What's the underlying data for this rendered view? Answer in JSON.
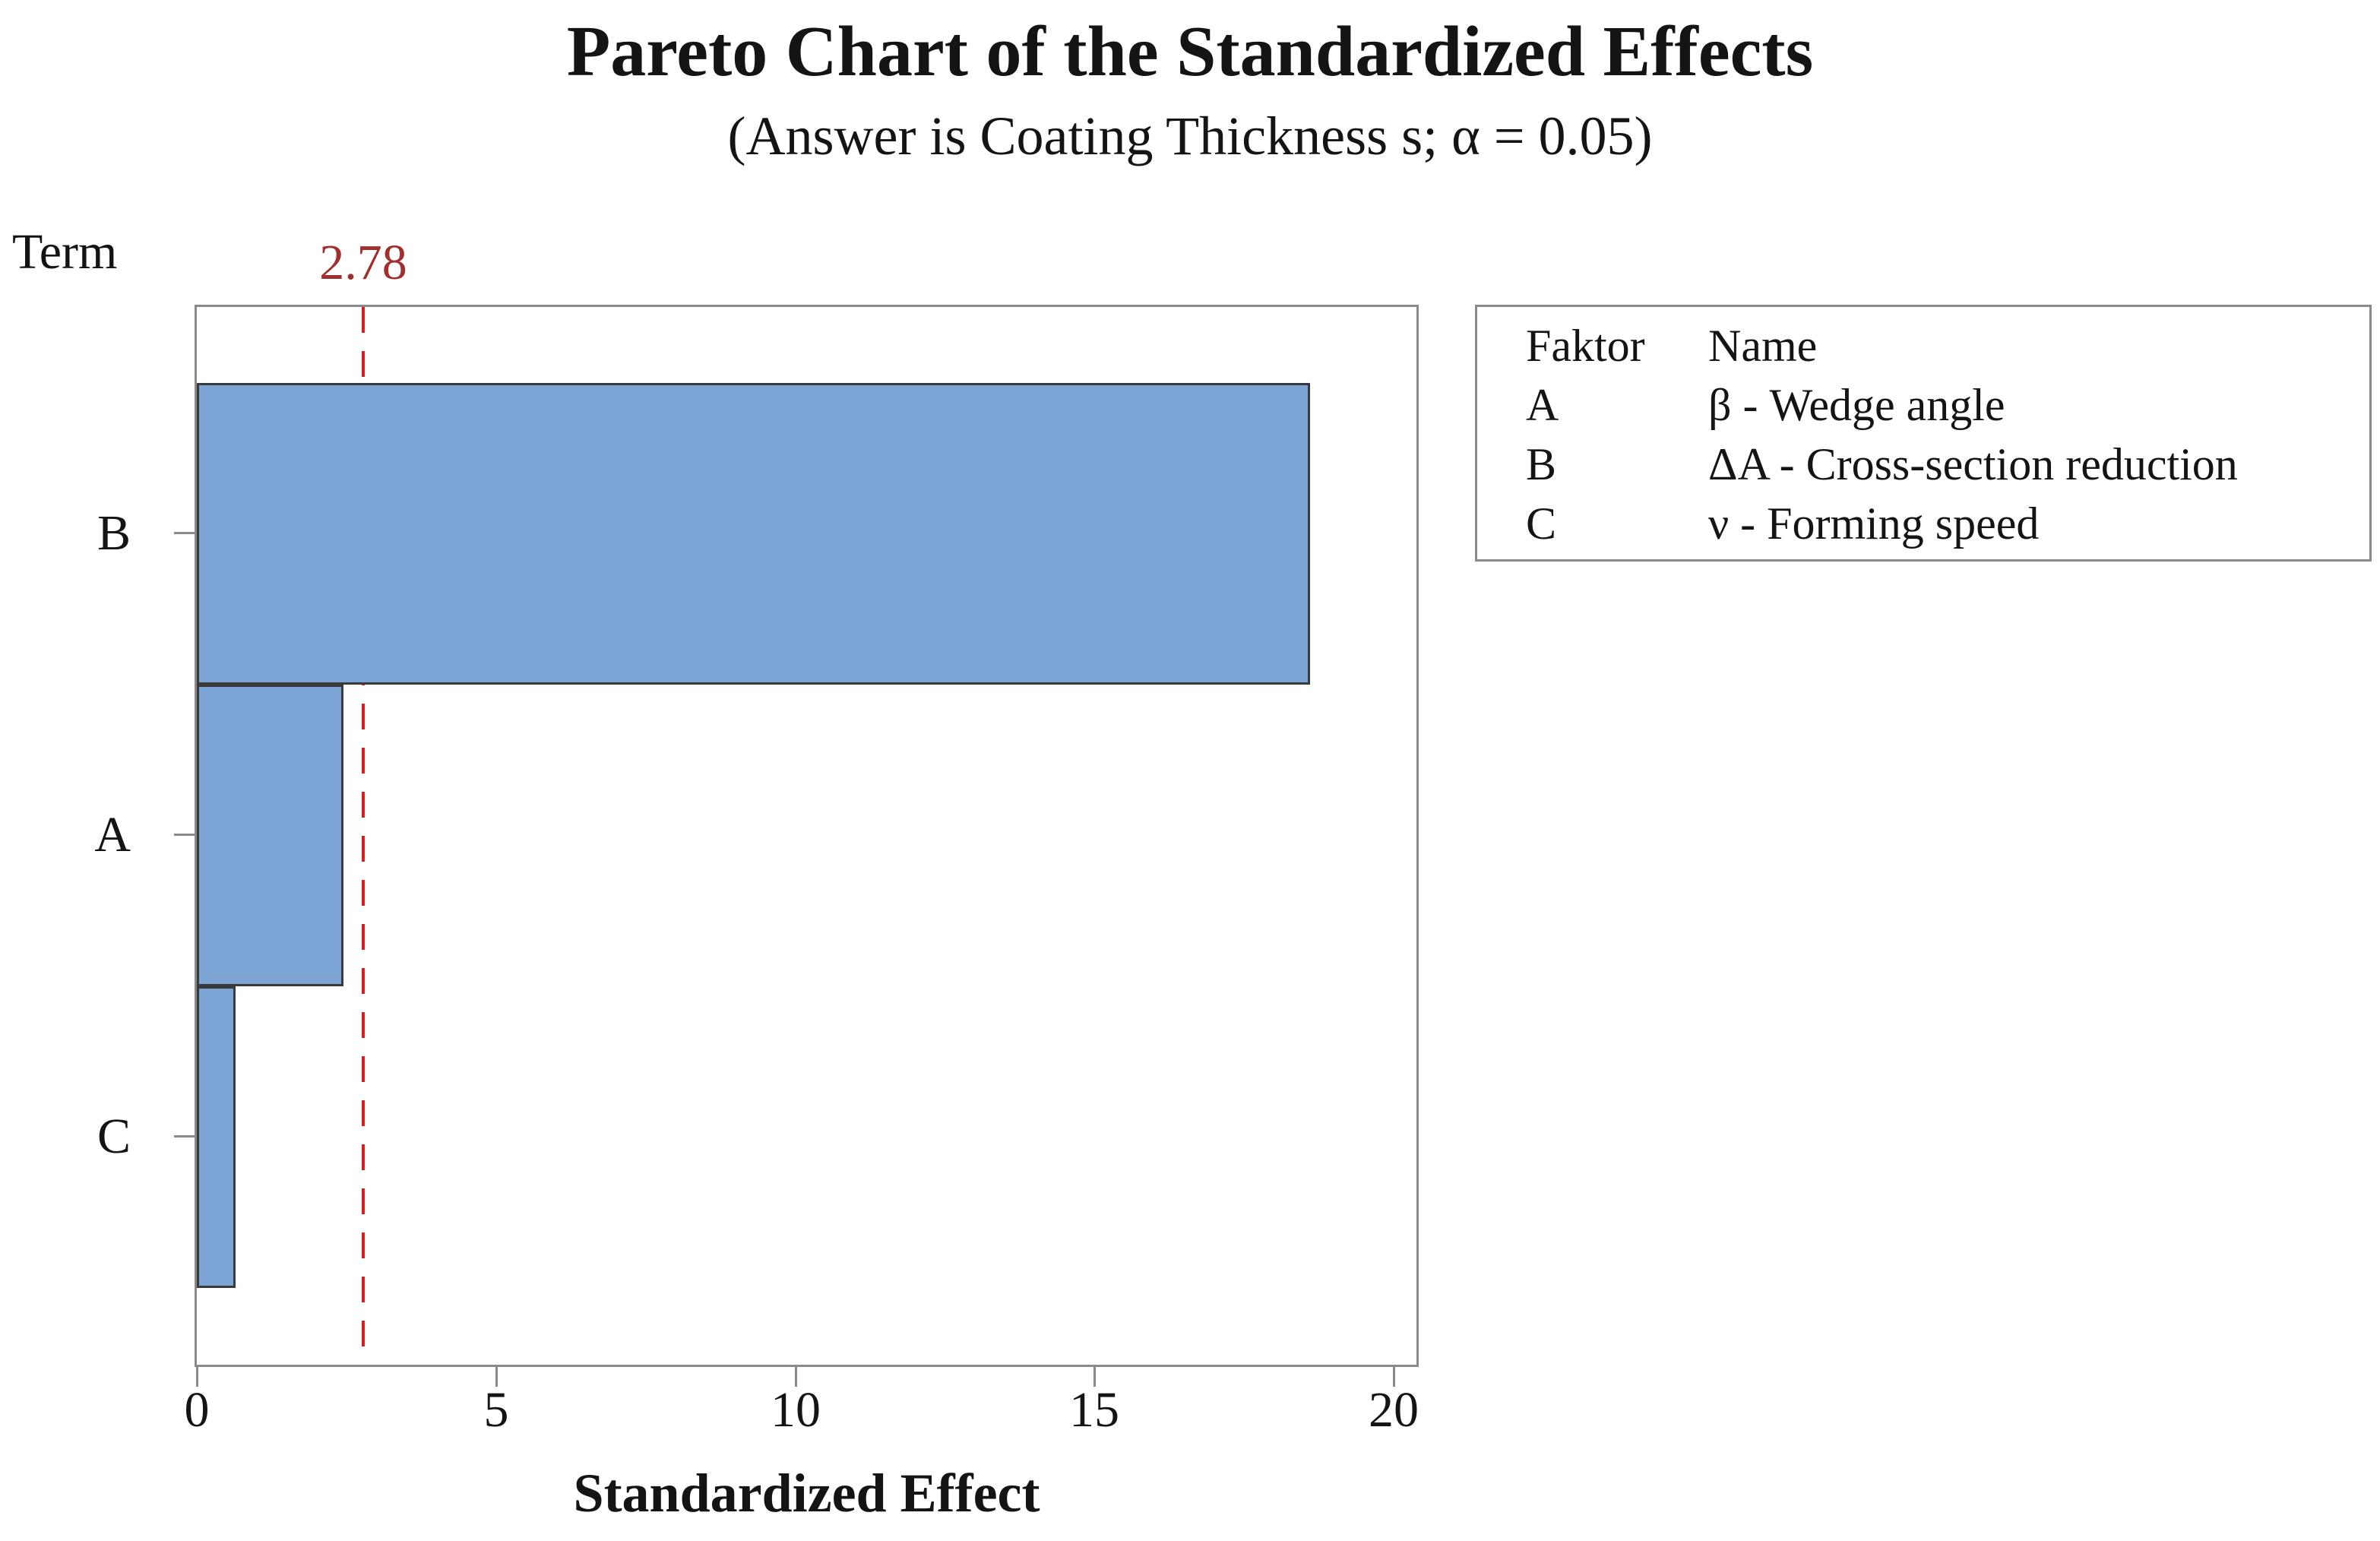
{
  "chart_data": {
    "type": "bar",
    "orientation": "horizontal",
    "title": "Pareto Chart of the Standardized Effects",
    "subtitle": "(Answer is Coating Thickness s; α = 0.05)",
    "ylabel": "Term",
    "xlabel": "Standardized Effect",
    "categories": [
      "B",
      "A",
      "C"
    ],
    "values": [
      18.6,
      2.45,
      0.65
    ],
    "xlim": [
      0,
      20.4
    ],
    "x_ticks": [
      "0",
      "5",
      "10",
      "15",
      "20"
    ],
    "x_tick_values": [
      0,
      5,
      10,
      15,
      20
    ],
    "grid": false,
    "reference_line": {
      "value": 2.78,
      "label": "2.78",
      "style": "dashed",
      "line_color": "#cc2222",
      "label_color": "#9e3030"
    },
    "colors": {
      "bar_fill": "#7ca5d6",
      "bar_border": "#3a3a3a",
      "frame": "#8a8a8a",
      "text": "#141414"
    },
    "legend": {
      "position": "top-right",
      "headers": [
        "Faktor",
        "Name"
      ],
      "rows": [
        {
          "faktor": "A",
          "name": "β - Wedge angle"
        },
        {
          "faktor": "B",
          "name": "ΔA - Cross-section reduction"
        },
        {
          "faktor": "C",
          "name": "ν - Forming speed"
        }
      ]
    }
  }
}
